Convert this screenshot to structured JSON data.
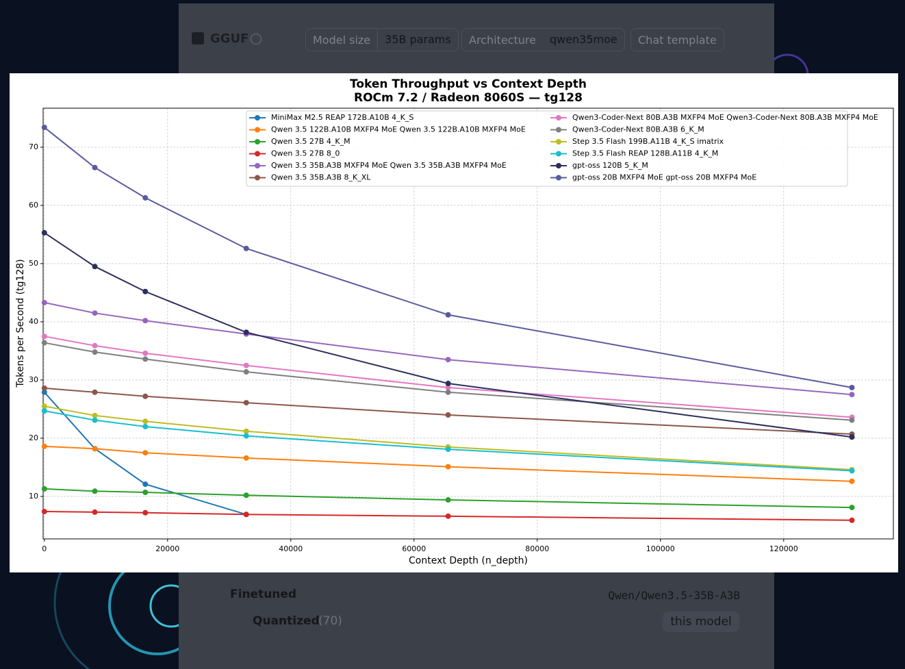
{
  "header": {
    "format": "GGUF",
    "model_size_label": "Model size",
    "model_size": "35B params",
    "architecture_label": "Architecture",
    "architecture": "qwen35moe",
    "chat_template": "Chat template"
  },
  "model_tree": {
    "finetuned_label": "Finetuned",
    "finetuned_model": "Qwen/Qwen3.5-35B-A3B",
    "quantized_label": "Quantized",
    "quantized_count": "(70)",
    "this_model": "this model"
  },
  "chart_data": {
    "type": "line",
    "title": "Token Throughput vs Context Depth",
    "subtitle": "ROCm 7.2 / Radeon 8060S — tg128",
    "x_label": "Context Depth (n_depth)",
    "y_label": "Tokens per Second (tg128)",
    "x": [
      0,
      8192,
      16384,
      32768,
      65536,
      131072
    ],
    "xlim": [
      -200,
      137800
    ],
    "xticks": [
      0,
      20000,
      40000,
      60000,
      80000,
      100000,
      120000
    ],
    "ylim": [
      2.7,
      76.7
    ],
    "yticks": [
      10,
      20,
      30,
      40,
      50,
      60,
      70
    ],
    "grid": true,
    "legend": "upper right",
    "legend_columns": 2,
    "series": [
      {
        "name": "MiniMax M2.5 REAP 172B.A10B 4_K_S",
        "color": "#1f77b4",
        "values": [
          27.9,
          18.2,
          12.1,
          6.9,
          null,
          null
        ]
      },
      {
        "name": "Qwen 3.5 122B.A10B MXFP4 MoE Qwen 3.5 122B.A10B MXFP4 MoE",
        "color": "#ff7f0e",
        "values": [
          18.6,
          18.2,
          17.5,
          16.6,
          15.1,
          12.6
        ]
      },
      {
        "name": "Qwen 3.5 27B 4_K_M",
        "color": "#2ca02c",
        "values": [
          11.3,
          10.9,
          10.7,
          10.2,
          9.4,
          8.1
        ]
      },
      {
        "name": "Qwen 3.5 27B 8_0",
        "color": "#d62728",
        "values": [
          7.4,
          7.3,
          7.2,
          6.9,
          6.6,
          5.9
        ]
      },
      {
        "name": "Qwen 3.5 35B.A3B MXFP4 MoE Qwen 3.5 35B.A3B MXFP4 MoE",
        "color": "#9467bd",
        "values": [
          43.3,
          41.5,
          40.2,
          37.9,
          33.5,
          27.5
        ]
      },
      {
        "name": "Qwen 3.5 35B.A3B 8_K_XL",
        "color": "#8c564b",
        "values": [
          28.6,
          27.9,
          27.2,
          26.1,
          24.0,
          20.7
        ]
      },
      {
        "name": "Qwen3-Coder-Next 80B.A3B MXFP4 MoE Qwen3-Coder-Next 80B.A3B MXFP4 MoE",
        "color": "#e377c2",
        "values": [
          37.5,
          35.9,
          34.6,
          32.5,
          28.7,
          23.6
        ]
      },
      {
        "name": "Qwen3-Coder-Next 80B.A3B 6_K_M",
        "color": "#7f7f7f",
        "values": [
          36.4,
          34.8,
          33.6,
          31.4,
          27.9,
          23.1
        ]
      },
      {
        "name": "Step 3.5 Flash 199B.A11B 4_K_S imatrix",
        "color": "#bcbd22",
        "values": [
          25.5,
          23.9,
          22.9,
          21.2,
          18.5,
          14.6
        ]
      },
      {
        "name": "Step 3.5 Flash REAP 128B.A11B 4_K_M",
        "color": "#17becf",
        "values": [
          24.7,
          23.1,
          22.0,
          20.4,
          18.1,
          14.4
        ]
      },
      {
        "name": "gpt-oss 120B 5_K_M",
        "color": "#2b2f5e",
        "values": [
          55.3,
          49.5,
          45.2,
          38.2,
          29.4,
          20.2
        ]
      },
      {
        "name": "gpt-oss 20B MXFP4 MoE gpt-oss 20B MXFP4 MoE",
        "color": "#5a5aa0",
        "values": [
          73.4,
          66.5,
          61.3,
          52.6,
          41.2,
          28.7
        ]
      }
    ]
  }
}
